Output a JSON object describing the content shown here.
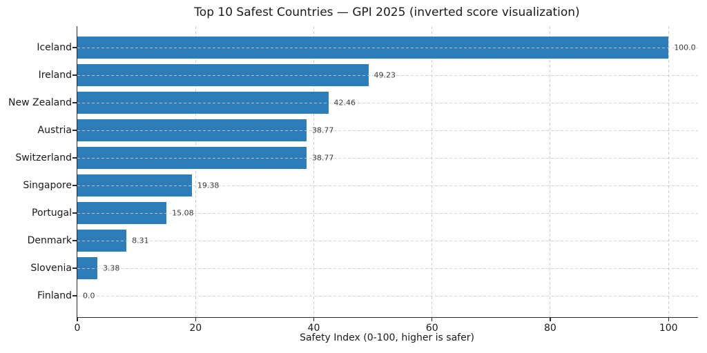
{
  "chart_data": {
    "type": "bar",
    "orientation": "horizontal",
    "title": "Top 10 Safest Countries — GPI 2025 (inverted score visualization)",
    "xlabel": "Safety Index (0-100, higher is safer)",
    "categories": [
      "Iceland",
      "Ireland",
      "New Zealand",
      "Austria",
      "Switzerland",
      "Singapore",
      "Portugal",
      "Denmark",
      "Slovenia",
      "Finland"
    ],
    "values": [
      100.0,
      49.23,
      42.46,
      38.77,
      38.77,
      19.38,
      15.08,
      8.31,
      3.38,
      0.0
    ],
    "value_labels": [
      "100.0",
      "49.23",
      "42.46",
      "38.77",
      "38.77",
      "19.38",
      "15.08",
      "8.31",
      "3.38",
      "0.0"
    ],
    "x_ticks": [
      0,
      20,
      40,
      60,
      80,
      100
    ],
    "xlim": [
      0,
      105
    ],
    "grid": "dashed-both-directions",
    "legend": "none",
    "bar_color": "#2d7dbb",
    "grid_color": "#cdcdcd",
    "spine_color": "#262626",
    "text_color": "#1a1a1a",
    "value_label_color": "#3c3c3c",
    "background_color": "#ffffff"
  }
}
